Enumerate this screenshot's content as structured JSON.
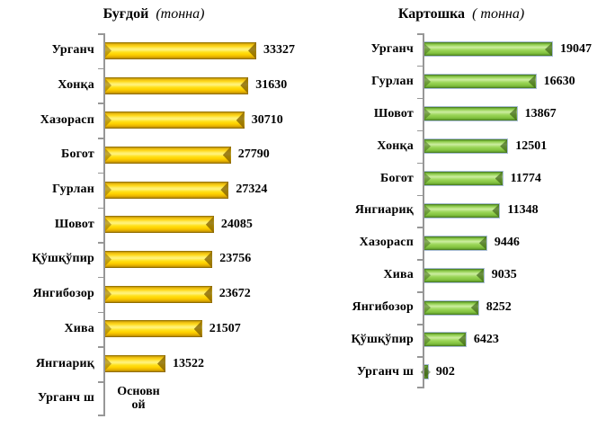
{
  "figure": {
    "background": "#ffffff",
    "axis_color": "#979797",
    "text_color": "#000000"
  },
  "chart_data": [
    {
      "type": "bar",
      "orientation": "horizontal",
      "title": "Буғдой",
      "title_suffix": "(тонна)",
      "unit": "тонна",
      "bar_color": "#FFD700",
      "color_key": "gold",
      "legend": "none",
      "grid": false,
      "categories": [
        "Урганч",
        "Хонқа",
        "Хазорасп",
        "Богот",
        "Гурлан",
        "Шовот",
        "Қўшқўпир",
        "Янгибозор",
        "Хива",
        "Янгиариқ",
        "Урганч ш"
      ],
      "values": [
        33327,
        31630,
        30710,
        27790,
        27324,
        24085,
        23756,
        23672,
        21507,
        13522,
        null
      ],
      "data_labels": [
        "33327",
        "31630",
        "30710",
        "27790",
        "27324",
        "24085",
        "23756",
        "23672",
        "21507",
        "13522",
        ""
      ],
      "null_value_label_lines": [
        "Основн",
        "ой"
      ]
    },
    {
      "type": "bar",
      "orientation": "horizontal",
      "title": "Картошка",
      "title_suffix": "( тонна)",
      "unit": "тонна",
      "bar_color": "#92D050",
      "color_key": "green",
      "legend": "none",
      "grid": false,
      "categories": [
        "Урганч",
        "Гурлан",
        "Шовот",
        "Хонқа",
        "Богот",
        "Янгиариқ",
        "Хазорасп",
        "Хива",
        "Янгибозор",
        "Қўшқўпир",
        "Урганч ш"
      ],
      "values": [
        19047,
        16630,
        13867,
        12501,
        11774,
        11348,
        9446,
        9035,
        8252,
        6423,
        902
      ],
      "data_labels": [
        "19047",
        "16630",
        "13867",
        "12501",
        "11774",
        "11348",
        "9446",
        "9035",
        "8252",
        "6423",
        "902"
      ]
    }
  ]
}
